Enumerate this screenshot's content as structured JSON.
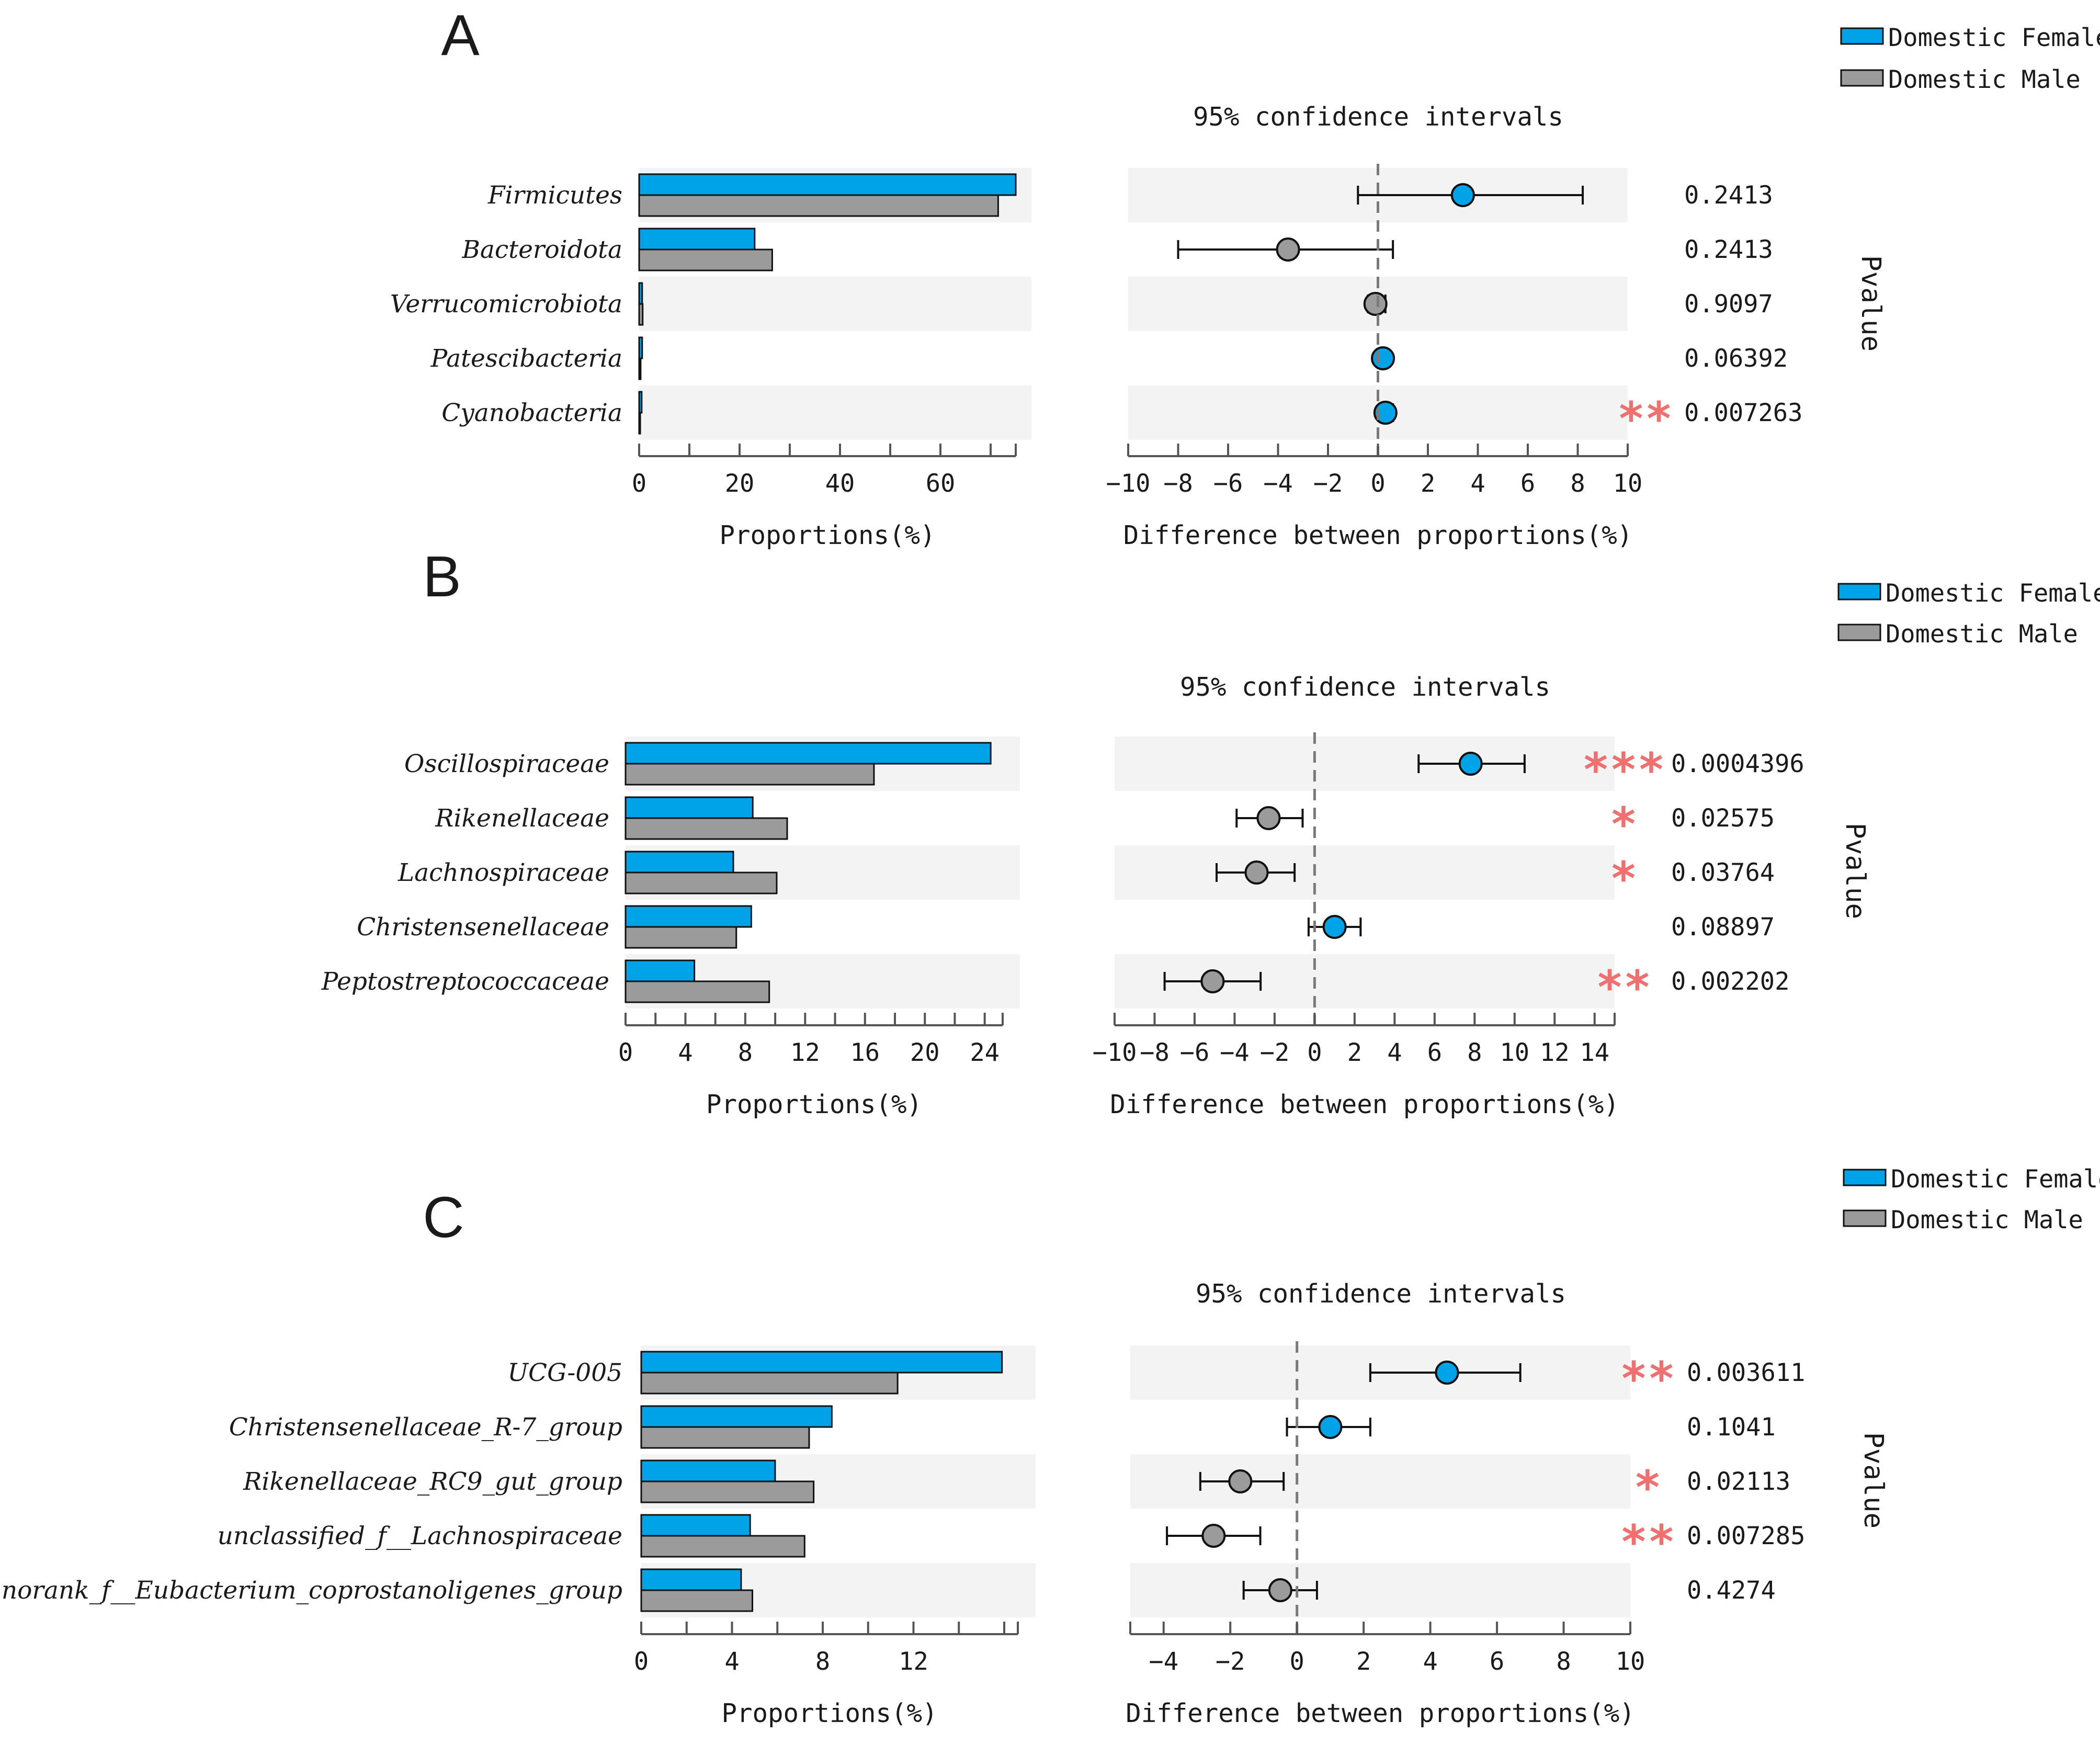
{
  "colors": {
    "female": "#00a2e8",
    "male": "#9b9b9b",
    "band": "#f3f3f3",
    "star": "#f07070",
    "zero_line": "#7a7a7a"
  },
  "legend": {
    "female": "Domestic Female",
    "male": "Domestic Male"
  },
  "chart_data": [
    {
      "panel": "A",
      "type": "bar",
      "title": "95% confidence intervals",
      "xlabel_left": "Proportions(%)",
      "xlabel_right": "Difference between proportions(%)",
      "pvalue_label": "Pvalue",
      "categories": [
        "Firmicutes",
        "Bacteroidota",
        "Verrucomicrobiota",
        "Patescibacteria",
        "Cyanobacteria"
      ],
      "series": [
        {
          "name": "Domestic Female",
          "values": [
            75,
            23,
            0.6,
            0.6,
            0.5
          ]
        },
        {
          "name": "Domestic Male",
          "values": [
            71.5,
            26.5,
            0.7,
            0.3,
            0.1
          ]
        }
      ],
      "left_ticks": [
        0,
        20,
        40,
        60
      ],
      "left_xlim": [
        0,
        75
      ],
      "right_ticks": [
        -10,
        -8,
        -6,
        -4,
        -2,
        0,
        2,
        4,
        6,
        8,
        10
      ],
      "right_xlim": [
        -10,
        10
      ],
      "differences": [
        {
          "estimate": 3.4,
          "ci": [
            -0.8,
            8.2
          ],
          "higher": "female"
        },
        {
          "estimate": -3.6,
          "ci": [
            -8.0,
            0.6
          ],
          "higher": "male"
        },
        {
          "estimate": -0.1,
          "ci": [
            -0.4,
            0.3
          ],
          "higher": "male"
        },
        {
          "estimate": 0.2,
          "ci": [
            0.0,
            0.4
          ],
          "higher": "female"
        },
        {
          "estimate": 0.3,
          "ci": [
            0.1,
            0.6
          ],
          "higher": "female"
        }
      ],
      "pvalues": [
        "0.2413",
        "0.2413",
        "0.9097",
        "0.06392",
        "0.007263"
      ],
      "stars": [
        "",
        "",
        "",
        "",
        "**"
      ]
    },
    {
      "panel": "B",
      "type": "bar",
      "title": "95% confidence intervals",
      "xlabel_left": "Proportions(%)",
      "xlabel_right": "Difference between proportions(%)",
      "pvalue_label": "Pvalue",
      "categories": [
        "Oscillospiraceae",
        "Rikenellaceae",
        "Lachnospiraceae",
        "Christensenellaceae",
        "Peptostreptococcaceae"
      ],
      "series": [
        {
          "name": "Domestic Female",
          "values": [
            24.4,
            8.5,
            7.2,
            8.4,
            4.6
          ]
        },
        {
          "name": "Domestic Male",
          "values": [
            16.6,
            10.8,
            10.1,
            7.4,
            9.6
          ]
        }
      ],
      "left_ticks": [
        0,
        4,
        8,
        12,
        16,
        20,
        24
      ],
      "left_xlim": [
        0,
        25.2
      ],
      "right_ticks": [
        -10,
        -8,
        -6,
        -4,
        -2,
        0,
        2,
        4,
        6,
        8,
        10,
        12,
        14
      ],
      "right_xlim": [
        -10,
        15
      ],
      "differences": [
        {
          "estimate": 7.8,
          "ci": [
            5.2,
            10.5
          ],
          "higher": "female"
        },
        {
          "estimate": -2.3,
          "ci": [
            -3.9,
            -0.6
          ],
          "higher": "male"
        },
        {
          "estimate": -2.9,
          "ci": [
            -4.9,
            -1.0
          ],
          "higher": "male"
        },
        {
          "estimate": 1.0,
          "ci": [
            -0.3,
            2.3
          ],
          "higher": "female"
        },
        {
          "estimate": -5.1,
          "ci": [
            -7.5,
            -2.7
          ],
          "higher": "male"
        }
      ],
      "pvalues": [
        "0.0004396",
        "0.02575",
        "0.03764",
        "0.08897",
        "0.002202"
      ],
      "stars": [
        "***",
        "*",
        "*",
        "",
        "**"
      ]
    },
    {
      "panel": "C",
      "type": "bar",
      "title": "95% confidence intervals",
      "xlabel_left": "Proportions(%)",
      "xlabel_right": "Difference between proportions(%)",
      "pvalue_label": "Pvalue",
      "categories": [
        "UCG-005",
        "Christensenellaceae_R-7_group",
        "Rikenellaceae_RC9_gut_group",
        "unclassified_f__Lachnospiraceae",
        "norank_f__Eubacterium_coprostanoligenes_group"
      ],
      "series": [
        {
          "name": "Domestic Female",
          "values": [
            15.9,
            8.4,
            5.9,
            4.8,
            4.4
          ]
        },
        {
          "name": "Domestic Male",
          "values": [
            11.3,
            7.4,
            7.6,
            7.2,
            4.9
          ]
        }
      ],
      "left_ticks": [
        0,
        4,
        8,
        12
      ],
      "left_xlim": [
        0,
        16.6
      ],
      "right_ticks": [
        -4,
        -2,
        0,
        2,
        4,
        6,
        8,
        10
      ],
      "right_xlim": [
        -5,
        10
      ],
      "differences": [
        {
          "estimate": 4.5,
          "ci": [
            2.2,
            6.7
          ],
          "higher": "female"
        },
        {
          "estimate": 1.0,
          "ci": [
            -0.3,
            2.2
          ],
          "higher": "female"
        },
        {
          "estimate": -1.7,
          "ci": [
            -2.9,
            -0.4
          ],
          "higher": "male"
        },
        {
          "estimate": -2.5,
          "ci": [
            -3.9,
            -1.1
          ],
          "higher": "male"
        },
        {
          "estimate": -0.5,
          "ci": [
            -1.6,
            0.6
          ],
          "higher": "male"
        }
      ],
      "pvalues": [
        "0.003611",
        "0.1041",
        "0.02113",
        "0.007285",
        "0.4274"
      ],
      "stars": [
        "**",
        "",
        "*",
        "**",
        ""
      ]
    }
  ]
}
